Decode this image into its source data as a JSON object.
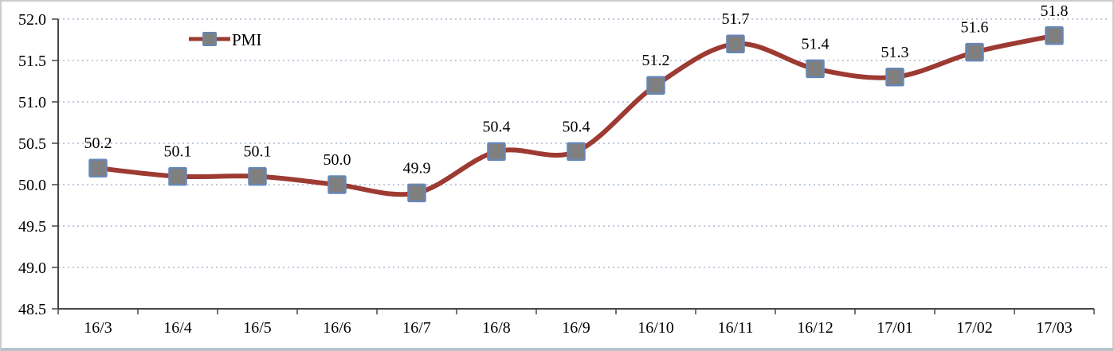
{
  "chart_data": {
    "type": "line",
    "title": "",
    "categories": [
      "16/3",
      "16/4",
      "16/5",
      "16/6",
      "16/7",
      "16/8",
      "16/9",
      "16/10",
      "16/11",
      "16/12",
      "17/01",
      "17/02",
      "17/03"
    ],
    "series": [
      {
        "name": "PMI",
        "values": [
          50.2,
          50.1,
          50.1,
          50.0,
          49.9,
          50.4,
          50.4,
          51.2,
          51.7,
          51.4,
          51.3,
          51.6,
          51.8
        ],
        "data_labels": [
          "50.2",
          "50.1",
          "50.1",
          "50.0",
          "49.9",
          "50.4",
          "50.4",
          "51.2",
          "51.7",
          "51.4",
          "51.3",
          "51.6",
          "51.8"
        ]
      }
    ],
    "ylim": [
      48.5,
      52.0
    ],
    "ytick_step": 0.5,
    "ytick_labels": [
      "52.0",
      "51.5",
      "51.0",
      "50.5",
      "50.0",
      "49.5",
      "49.0",
      "48.5"
    ],
    "grid": "horizontal-dotted",
    "line_smooth": true,
    "legend_position": "top-inside-left",
    "colors": {
      "line": "#9d3a32",
      "marker_fill": "#7f7f7f",
      "marker_border": "#6787b5",
      "gridline": "#bfcbdb",
      "axis": "#474747",
      "text": "#000000",
      "background": "#ffffff"
    }
  }
}
